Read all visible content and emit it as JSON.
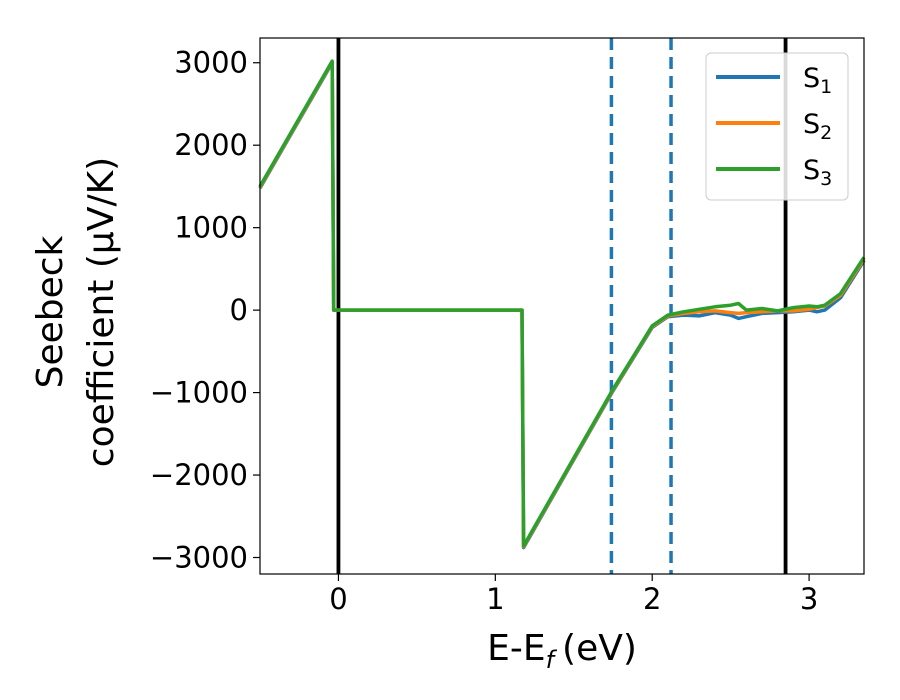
{
  "chart_data": {
    "type": "line",
    "xlabel": "E-E",
    "xlabel_sub": "f",
    "xlabel_unit": "(eV)",
    "ylabel_line1": "Seebeck",
    "ylabel_line2": "coefficient  (μV/K)",
    "xlim": [
      -0.5,
      3.35
    ],
    "ylim": [
      -3200,
      3300
    ],
    "xticks": [
      0,
      1,
      2,
      3
    ],
    "yticks": [
      -3000,
      -2000,
      -1000,
      0,
      1000,
      2000,
      3000
    ],
    "xtick_labels": [
      "0",
      "1",
      "2",
      "3"
    ],
    "ytick_labels": [
      "−3000",
      "−2000",
      "−1000",
      "0",
      "1000",
      "2000",
      "3000"
    ],
    "grid": false,
    "legend_position": "top-right",
    "series": [
      {
        "name": "S",
        "sub": "1",
        "color": "#1f77b4",
        "x": [
          -0.5,
          -0.04,
          -0.03,
          1.17,
          1.18,
          1.75,
          2.0,
          2.1,
          2.2,
          2.3,
          2.4,
          2.5,
          2.55,
          2.6,
          2.7,
          2.8,
          2.9,
          3.0,
          3.05,
          3.1,
          3.2,
          3.35
        ],
        "y": [
          1480,
          3000,
          0,
          0,
          -2880,
          -980,
          -210,
          -80,
          -60,
          -70,
          -30,
          -60,
          -100,
          -80,
          -40,
          -30,
          -20,
          0,
          -20,
          0,
          150,
          600
        ]
      },
      {
        "name": "S",
        "sub": "2",
        "color": "#ff7f0e",
        "x": [
          -0.5,
          -0.04,
          -0.03,
          1.17,
          1.18,
          1.75,
          2.0,
          2.1,
          2.2,
          2.3,
          2.4,
          2.5,
          2.55,
          2.6,
          2.7,
          2.8,
          2.9,
          3.0,
          3.05,
          3.1,
          3.2,
          3.35
        ],
        "y": [
          1490,
          3010,
          0,
          0,
          -2870,
          -970,
          -200,
          -70,
          -40,
          -20,
          -10,
          -30,
          -40,
          -30,
          -20,
          -10,
          -10,
          10,
          30,
          50,
          180,
          620
        ]
      },
      {
        "name": "S",
        "sub": "3",
        "color": "#2ca02c",
        "x": [
          -0.5,
          -0.04,
          -0.03,
          1.17,
          1.18,
          1.75,
          2.0,
          2.1,
          2.2,
          2.3,
          2.4,
          2.5,
          2.55,
          2.6,
          2.7,
          2.8,
          2.9,
          3.0,
          3.05,
          3.1,
          3.2,
          3.35
        ],
        "y": [
          1500,
          3020,
          0,
          0,
          -2860,
          -960,
          -190,
          -60,
          -20,
          10,
          40,
          60,
          80,
          0,
          20,
          -10,
          30,
          50,
          40,
          60,
          200,
          640
        ]
      }
    ],
    "vlines": [
      {
        "x": 0.0,
        "style": "solid",
        "color": "#000000"
      },
      {
        "x": 2.85,
        "style": "solid",
        "color": "#000000"
      },
      {
        "x": 1.74,
        "style": "dashed",
        "color": "#1f77b4"
      },
      {
        "x": 2.12,
        "style": "dashed",
        "color": "#1f77b4"
      }
    ]
  }
}
